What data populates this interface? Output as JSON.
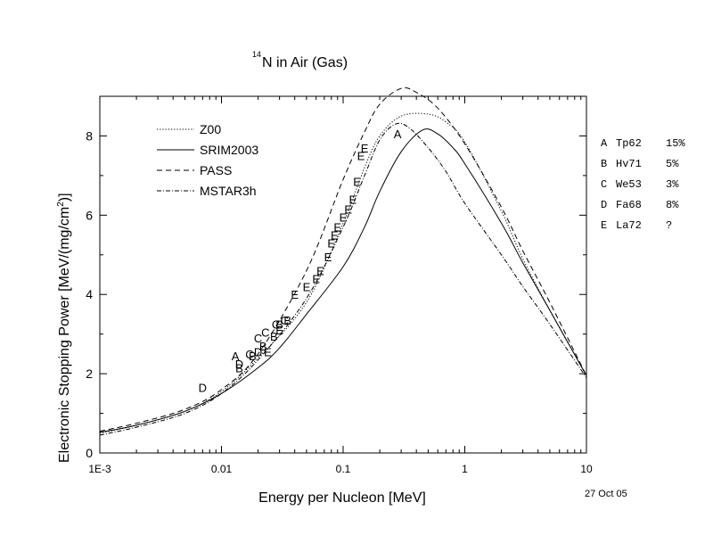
{
  "chart_data": {
    "type": "line",
    "title_superscript": "14",
    "title": "N in Air (Gas)",
    "xlabel": "Energy per Nucleon [MeV]",
    "ylabel": "Electronic Stopping Power [MeV/(mg/cm",
    "ylabel_superscript": "2",
    "ylabel_suffix": ")]",
    "x_scale": "log",
    "xlim": [
      0.001,
      10
    ],
    "ylim": [
      0,
      9
    ],
    "x_ticks": [
      {
        "value": 0.001,
        "label": "1E-3"
      },
      {
        "value": 0.01,
        "label": "0.01"
      },
      {
        "value": 0.1,
        "label": "0.1"
      },
      {
        "value": 1,
        "label": "1"
      },
      {
        "value": 10,
        "label": "10"
      }
    ],
    "y_ticks": [
      {
        "value": 0,
        "label": "0"
      },
      {
        "value": 2,
        "label": "2"
      },
      {
        "value": 4,
        "label": "4"
      },
      {
        "value": 6,
        "label": "6"
      },
      {
        "value": 8,
        "label": "8"
      }
    ],
    "grid": false,
    "legend_position": "top-left",
    "series": [
      {
        "name": "Z00",
        "dash": "dotted",
        "points": [
          [
            0.001,
            0.5
          ],
          [
            0.002,
            0.7
          ],
          [
            0.005,
            1.05
          ],
          [
            0.01,
            1.55
          ],
          [
            0.02,
            2.4
          ],
          [
            0.05,
            3.8
          ],
          [
            0.1,
            5.8
          ],
          [
            0.15,
            7.2
          ],
          [
            0.2,
            8.0
          ],
          [
            0.3,
            8.5
          ],
          [
            0.5,
            8.55
          ],
          [
            0.7,
            8.35
          ],
          [
            1,
            7.85
          ],
          [
            2,
            6.1
          ],
          [
            3,
            4.9
          ],
          [
            5,
            3.6
          ],
          [
            10,
            1.95
          ]
        ]
      },
      {
        "name": "SRIM2003",
        "dash": "solid",
        "points": [
          [
            0.001,
            0.52
          ],
          [
            0.002,
            0.7
          ],
          [
            0.005,
            1.05
          ],
          [
            0.01,
            1.5
          ],
          [
            0.02,
            2.15
          ],
          [
            0.03,
            2.65
          ],
          [
            0.05,
            3.5
          ],
          [
            0.1,
            4.7
          ],
          [
            0.15,
            5.7
          ],
          [
            0.2,
            6.6
          ],
          [
            0.3,
            7.6
          ],
          [
            0.45,
            8.15
          ],
          [
            0.6,
            8.05
          ],
          [
            0.8,
            7.7
          ],
          [
            1,
            7.3
          ],
          [
            2,
            5.8
          ],
          [
            3,
            4.8
          ],
          [
            5,
            3.6
          ],
          [
            10,
            1.95
          ]
        ]
      },
      {
        "name": "PASS",
        "dash": "dashed",
        "points": [
          [
            0.001,
            0.55
          ],
          [
            0.002,
            0.75
          ],
          [
            0.005,
            1.1
          ],
          [
            0.01,
            1.6
          ],
          [
            0.02,
            2.5
          ],
          [
            0.05,
            4.6
          ],
          [
            0.1,
            6.9
          ],
          [
            0.15,
            8.1
          ],
          [
            0.2,
            8.8
          ],
          [
            0.3,
            9.2
          ],
          [
            0.4,
            9.1
          ],
          [
            0.6,
            8.7
          ],
          [
            1,
            7.8
          ],
          [
            2,
            6.2
          ],
          [
            3,
            5.1
          ],
          [
            5,
            3.8
          ],
          [
            10,
            1.95
          ]
        ]
      },
      {
        "name": "MSTAR3h",
        "dash": "dashdot",
        "points": [
          [
            0.001,
            0.45
          ],
          [
            0.002,
            0.65
          ],
          [
            0.005,
            1.0
          ],
          [
            0.01,
            1.5
          ],
          [
            0.02,
            2.35
          ],
          [
            0.05,
            3.9
          ],
          [
            0.1,
            5.7
          ],
          [
            0.15,
            7.0
          ],
          [
            0.2,
            7.9
          ],
          [
            0.27,
            8.3
          ],
          [
            0.35,
            8.2
          ],
          [
            0.5,
            7.7
          ],
          [
            0.7,
            7.1
          ],
          [
            1,
            6.3
          ],
          [
            2,
            5.0
          ],
          [
            3,
            4.2
          ],
          [
            5,
            3.25
          ],
          [
            10,
            1.9
          ]
        ]
      }
    ],
    "experimental_points": [
      {
        "letter": "A",
        "points": [
          [
            0.013,
            2.45
          ],
          [
            0.28,
            8.05
          ]
        ]
      },
      {
        "letter": "B",
        "points": [
          [
            0.014,
            2.15
          ],
          [
            0.018,
            2.45
          ],
          [
            0.022,
            2.7
          ],
          [
            0.027,
            2.95
          ],
          [
            0.03,
            3.25
          ],
          [
            0.035,
            3.35
          ]
        ]
      },
      {
        "letter": "C",
        "points": [
          [
            0.017,
            2.5
          ],
          [
            0.02,
            2.9
          ],
          [
            0.023,
            3.05
          ],
          [
            0.028,
            3.25
          ],
          [
            0.033,
            3.35
          ]
        ]
      },
      {
        "letter": "D",
        "points": [
          [
            0.007,
            1.65
          ],
          [
            0.014,
            2.25
          ],
          [
            0.02,
            2.55
          ]
        ]
      },
      {
        "letter": "E",
        "points": [
          [
            0.024,
            2.55
          ],
          [
            0.03,
            3.1
          ],
          [
            0.04,
            4.0
          ],
          [
            0.05,
            4.2
          ],
          [
            0.06,
            4.4
          ],
          [
            0.065,
            4.6
          ],
          [
            0.075,
            4.95
          ],
          [
            0.08,
            5.3
          ],
          [
            0.085,
            5.5
          ],
          [
            0.09,
            5.7
          ],
          [
            0.1,
            5.95
          ],
          [
            0.11,
            6.15
          ],
          [
            0.12,
            6.4
          ],
          [
            0.13,
            6.85
          ],
          [
            0.14,
            7.5
          ],
          [
            0.15,
            7.7
          ]
        ]
      }
    ],
    "reference_legend": [
      {
        "letter": "A",
        "ref": "Tp62",
        "err": "15%"
      },
      {
        "letter": "B",
        "ref": "Hv71",
        "err": "5%"
      },
      {
        "letter": "C",
        "ref": "We53",
        "err": "3%"
      },
      {
        "letter": "D",
        "ref": "Fa68",
        "err": "8%"
      },
      {
        "letter": "E",
        "ref": "La72",
        "err": "?"
      }
    ],
    "date_stamp": "27 Oct 05"
  }
}
